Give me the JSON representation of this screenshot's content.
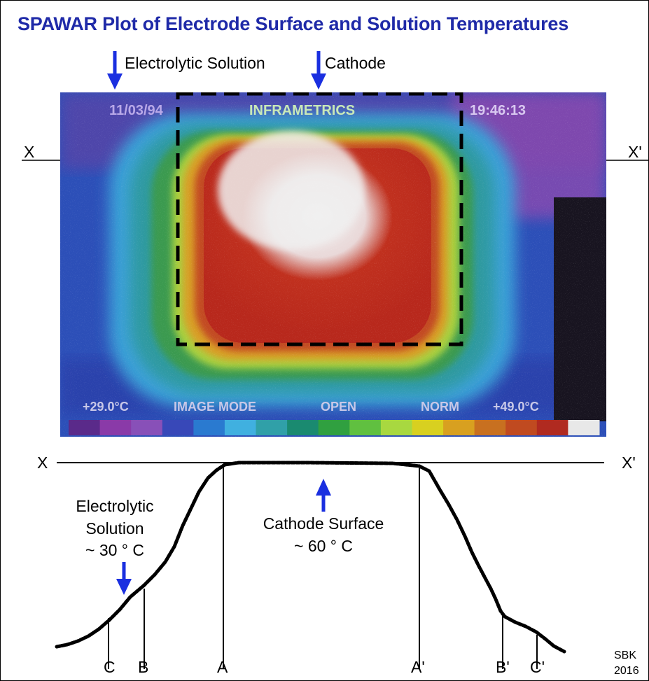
{
  "title": "SPAWAR Plot of Electrode Surface and Solution Temperatures",
  "top_labels": {
    "electrolytic_solution": "Electrolytic Solution",
    "cathode": "Cathode",
    "x_left": "X",
    "x_right": "X'"
  },
  "thermal_image": {
    "date": "11/03/94",
    "brand": "INFRAMETRICS",
    "time": "19:46:13",
    "min_temp": "+29.0°C",
    "mode": "IMAGE MODE",
    "open": "OPEN",
    "norm": "NORM",
    "max_temp": "+49.0°C",
    "colorbar": [
      "#5a2a8a",
      "#8a3aa8",
      "#8850b8",
      "#3848b8",
      "#2a7ad0",
      "#40b0e0",
      "#30a0a8",
      "#1a8a70",
      "#30a040",
      "#60c040",
      "#a8d840",
      "#d8d020",
      "#d8a020",
      "#c87020",
      "#c04a20",
      "#b02a20",
      "#e8e8e8"
    ]
  },
  "profile": {
    "x_left": "X",
    "x_right": "X'",
    "solution_label_line1": "Electrolytic",
    "solution_label_line2": "Solution",
    "solution_temp": "~ 30 ° C",
    "cathode_label": "Cathode Surface",
    "cathode_temp": "~ 60 ° C",
    "markers": [
      "C",
      "B",
      "A",
      "A'",
      "B'",
      "C'"
    ]
  },
  "credit_line1": "SBK",
  "credit_line2": "2016",
  "accent_color": "#1f2aa8",
  "arrow_color": "#1a2fe0"
}
